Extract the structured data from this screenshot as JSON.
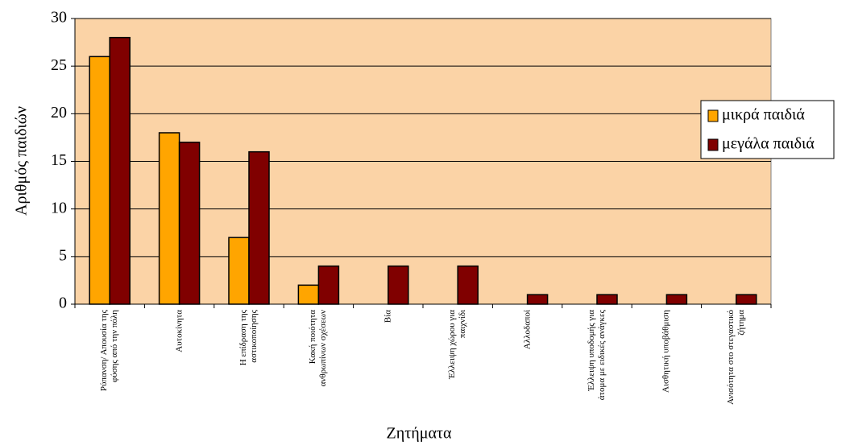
{
  "chart_data": {
    "type": "bar",
    "categories": [
      "Ρύπανση/ Απουσία της φύσης από την πόλη",
      "Αυτοκίνητα",
      "Η επίδραση της αστικοποίησης",
      "Κακή ποιότητα ανθρωπίνων σχέσεων",
      "Βία",
      "Έλλειψη χώρου για παιχνίδι",
      "Αλλοδαποί",
      "Έλλειψη υποδομής για άτομα με ειδικές ανάγκες",
      "Αισθητική υποβάθμιση",
      "Ανισότητα στο στεγαστικό ζήτημα"
    ],
    "series": [
      {
        "name": "μικρά παιδιά",
        "color": "#ffa500",
        "values": [
          26,
          18,
          7,
          2,
          0,
          0,
          0,
          0,
          0,
          0
        ]
      },
      {
        "name": "μεγάλα παιδιά",
        "color": "#800000",
        "values": [
          28,
          17,
          16,
          4,
          4,
          4,
          1,
          1,
          1,
          1
        ]
      }
    ],
    "x_label": "Ζητήματα",
    "y_label": "Αριθμός παιδιών",
    "ylim": [
      0,
      30
    ],
    "yticks": [
      0,
      5,
      10,
      15,
      20,
      25,
      30
    ],
    "grid": true,
    "plot_background": "#fbd3a6",
    "legend": "right"
  }
}
